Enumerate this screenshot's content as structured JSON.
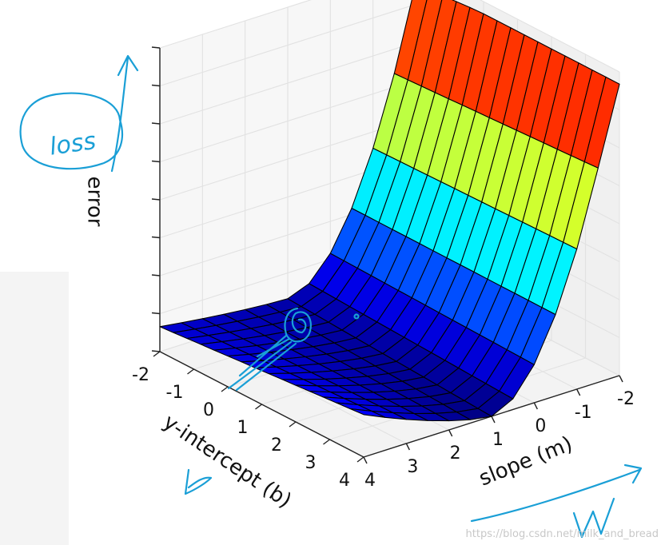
{
  "chart_data": {
    "type": "surface3d",
    "title": "",
    "xlabel": "slope (m)",
    "ylabel": "y-intercept (b)",
    "zlabel": "error",
    "x_ticks": [
      "-2",
      "-1",
      "0",
      "1",
      "2",
      "3",
      "4"
    ],
    "y_ticks": [
      "-2",
      "-1",
      "0",
      "1",
      "2",
      "3",
      "4"
    ],
    "xlim": [
      -2,
      4
    ],
    "ylim": [
      -2,
      4
    ],
    "x_grid": [
      -2.0,
      -1.5,
      -1.0,
      -0.5,
      0.0,
      0.5,
      1.0,
      1.5,
      2.0,
      2.5,
      3.0,
      3.5,
      4.0
    ],
    "y_grid": [
      -2.0,
      -1.6,
      -1.2,
      -0.8,
      -0.4,
      0.0,
      0.4,
      0.8,
      1.2,
      1.6,
      2.0,
      2.4,
      2.8,
      3.2,
      3.6,
      4.0
    ],
    "zlim": [
      0,
      1
    ],
    "colormap": "jet",
    "grid": true,
    "legend": "none"
  },
  "annotations": {
    "loss_note": "loss",
    "b_note": "b",
    "w_note": "W",
    "ink_color": "#1a9fd6"
  },
  "watermark": "https://blog.csdn.net/milk_and_bread"
}
